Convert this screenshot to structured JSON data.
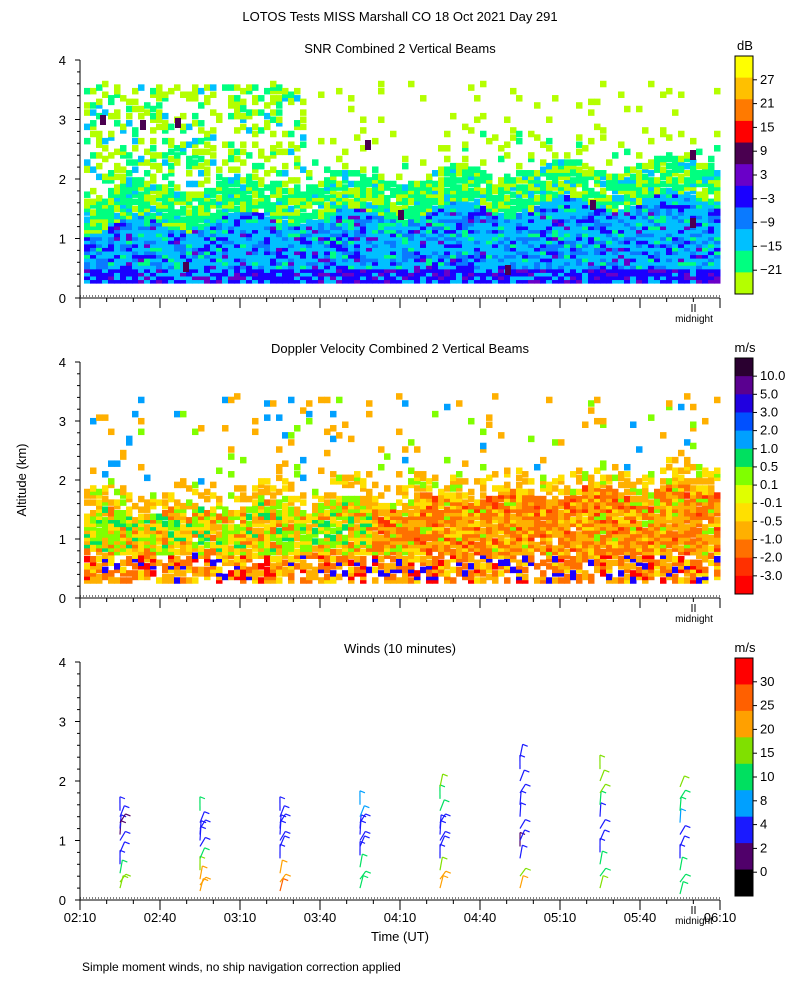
{
  "page": {
    "title": "LOTOS Tests MISS Marshall CO  18 Oct 2021 Day 291",
    "y_axis_label": "Altitude (km)",
    "x_axis_label": "Time (UT)",
    "footnote": "Simple moment winds, no ship navigation correction applied",
    "midnight_label": "midnight"
  },
  "chart_data": [
    {
      "id": "snr",
      "type": "heatmap",
      "title": "SNR Combined 2 Vertical Beams",
      "ylabel": "Altitude (km)",
      "ylim": [
        0,
        4
      ],
      "yticks": [
        "0",
        "1",
        "2",
        "3",
        "4"
      ],
      "xlim": [
        "02:10",
        "06:10"
      ],
      "colorbar": {
        "unit": "dB",
        "labels": [
          "27",
          "21",
          "15",
          "9",
          "3",
          "−3",
          "−9",
          "−15",
          "−21"
        ],
        "colors": [
          "#ffff00",
          "#ffc000",
          "#ff7a00",
          "#ff0000",
          "#4a0050",
          "#6a00c8",
          "#1a00ff",
          "#0a7aff",
          "#00c0ff",
          "#00ff80",
          "#b4ff00"
        ]
      },
      "layers": [
        {
          "band_km": [
            0.25,
            0.45
          ],
          "level": "low-SNR blue/purple"
        },
        {
          "band_km": [
            0.45,
            1.5
          ],
          "level": "cyan/blue"
        },
        {
          "band_km": [
            1.5,
            2.2
          ],
          "level": "green/yellow-green, sparse"
        }
      ]
    },
    {
      "id": "doppler",
      "type": "heatmap",
      "title": "Doppler Velocity Combined 2 Vertical Beams",
      "ylim": [
        0,
        4
      ],
      "yticks": [
        "0",
        "1",
        "2",
        "3",
        "4"
      ],
      "xlim": [
        "02:10",
        "06:10"
      ],
      "colorbar": {
        "unit": "m/s",
        "labels": [
          "10.0",
          "5.0",
          "3.0",
          "2.0",
          "1.0",
          "0.5",
          "0.1",
          "-0.1",
          "-0.5",
          "-1.0",
          "-2.0",
          "-3.0"
        ],
        "colors": [
          "#2a0030",
          "#5a0090",
          "#2000e0",
          "#0050ff",
          "#00a0ff",
          "#00e060",
          "#80ff00",
          "#e0ff00",
          "#ffe000",
          "#ffb000",
          "#ff7000",
          "#ff3000",
          "#ff0000"
        ]
      }
    },
    {
      "id": "winds",
      "type": "scatter",
      "title": "Winds (10 minutes)",
      "ylim": [
        0,
        4
      ],
      "yticks": [
        "0",
        "1",
        "2",
        "3",
        "4"
      ],
      "xlim": [
        "02:10",
        "06:10"
      ],
      "xticks": [
        "02:10",
        "02:40",
        "03:10",
        "03:40",
        "04:10",
        "04:40",
        "05:10",
        "05:40",
        "06:10"
      ],
      "colorbar": {
        "unit": "m/s",
        "labels": [
          "30",
          "25",
          "20",
          "15",
          "10",
          "8",
          "4",
          "2",
          "0"
        ],
        "colors": [
          "#ff0000",
          "#ff6000",
          "#ffa000",
          "#80e000",
          "#00e060",
          "#00a0ff",
          "#1a1aff",
          "#50006a",
          "#000000"
        ]
      },
      "profiles": [
        {
          "time": "02:25",
          "alt_km": [
            0.2,
            0.3,
            0.45,
            0.6,
            0.8,
            1.0,
            1.1,
            1.2,
            1.3,
            1.4,
            1.5
          ],
          "speed": [
            18,
            15,
            12,
            6,
            4,
            4,
            3,
            4,
            3,
            4,
            4
          ]
        },
        {
          "time": "02:55",
          "alt_km": [
            0.15,
            0.25,
            0.35,
            0.5,
            0.7,
            0.9,
            1.0,
            1.1,
            1.2,
            1.3,
            1.5
          ],
          "speed": [
            22,
            24,
            20,
            18,
            10,
            6,
            4,
            5,
            4,
            6,
            12
          ]
        },
        {
          "time": "03:25",
          "alt_km": [
            0.15,
            0.3,
            0.45,
            0.7,
            0.9,
            1.0,
            1.1,
            1.2,
            1.3,
            1.4,
            1.5
          ],
          "speed": [
            25,
            24,
            20,
            5,
            4,
            4,
            5,
            6,
            4,
            5,
            4
          ]
        },
        {
          "time": "03:55",
          "alt_km": [
            0.2,
            0.35,
            0.55,
            0.75,
            0.9,
            1.0,
            1.1,
            1.2,
            1.3,
            1.4,
            1.6
          ],
          "speed": [
            14,
            12,
            10,
            6,
            4,
            4,
            5,
            4,
            6,
            8,
            9
          ]
        },
        {
          "time": "04:25",
          "alt_km": [
            0.2,
            0.35,
            0.5,
            0.7,
            0.9,
            1.0,
            1.1,
            1.2,
            1.3,
            1.5,
            1.7,
            1.9
          ],
          "speed": [
            22,
            20,
            18,
            6,
            5,
            4,
            5,
            4,
            5,
            12,
            14,
            16
          ]
        },
        {
          "time": "04:55",
          "alt_km": [
            0.2,
            0.4,
            0.7,
            0.9,
            1.0,
            1.2,
            1.4,
            1.6,
            1.8,
            2.0,
            2.2,
            2.4
          ],
          "speed": [
            20,
            18,
            4,
            3,
            4,
            5,
            4,
            4,
            5,
            4,
            5,
            4
          ]
        },
        {
          "time": "05:25",
          "alt_km": [
            0.2,
            0.4,
            0.6,
            0.8,
            1.0,
            1.2,
            1.4,
            1.6,
            1.8,
            2.0,
            2.2
          ],
          "speed": [
            15,
            14,
            12,
            5,
            4,
            4,
            5,
            14,
            16,
            16,
            15
          ]
        },
        {
          "time": "05:55",
          "alt_km": [
            0.1,
            0.3,
            0.5,
            0.7,
            0.9,
            1.1,
            1.3,
            1.5,
            1.7,
            1.9
          ],
          "speed": [
            10,
            12,
            10,
            6,
            4,
            5,
            8,
            10,
            14,
            15
          ]
        }
      ]
    }
  ]
}
